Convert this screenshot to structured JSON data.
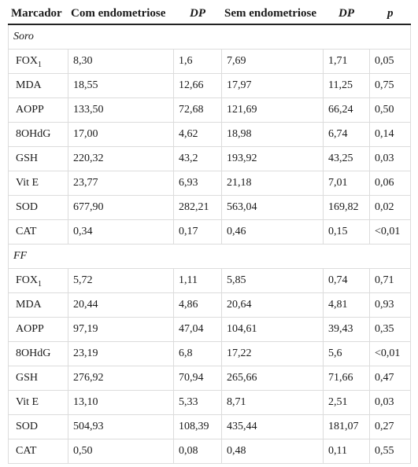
{
  "table": {
    "headers": [
      "Marcador",
      "Com endometriose",
      "DP",
      "Sem endometriose",
      "DP",
      "p"
    ],
    "sections": [
      {
        "label": "Soro",
        "rows": [
          {
            "marker": "FOX",
            "sub": "1",
            "com": "8,30",
            "dp1": "1,6",
            "sem": "7,69",
            "dp2": "1,71",
            "p": "0,05"
          },
          {
            "marker": "MDA",
            "sub": "",
            "com": "18,55",
            "dp1": "12,66",
            "sem": "17,97",
            "dp2": "11,25",
            "p": "0,75"
          },
          {
            "marker": "AOPP",
            "sub": "",
            "com": "133,50",
            "dp1": "72,68",
            "sem": "121,69",
            "dp2": "66,24",
            "p": "0,50"
          },
          {
            "marker": "8OHdG",
            "sub": "",
            "com": "17,00",
            "dp1": "4,62",
            "sem": "18,98",
            "dp2": "6,74",
            "p": "0,14"
          },
          {
            "marker": "GSH",
            "sub": "",
            "com": "220,32",
            "dp1": "43,2",
            "sem": "193,92",
            "dp2": "43,25",
            "p": "0,03"
          },
          {
            "marker": "Vit E",
            "sub": "",
            "com": "23,77",
            "dp1": "6,93",
            "sem": "21,18",
            "dp2": "7,01",
            "p": "0,06"
          },
          {
            "marker": "SOD",
            "sub": "",
            "com": "677,90",
            "dp1": "282,21",
            "sem": "563,04",
            "dp2": "169,82",
            "p": "0,02"
          },
          {
            "marker": "CAT",
            "sub": "",
            "com": "0,34",
            "dp1": "0,17",
            "sem": "0,46",
            "dp2": "0,15",
            "p": "<0,01"
          }
        ]
      },
      {
        "label": "FF",
        "rows": [
          {
            "marker": "FOX",
            "sub": "1",
            "com": "5,72",
            "dp1": "1,11",
            "sem": "5,85",
            "dp2": "0,74",
            "p": "0,71"
          },
          {
            "marker": "MDA",
            "sub": "",
            "com": "20,44",
            "dp1": "4,86",
            "sem": "20,64",
            "dp2": "4,81",
            "p": "0,93"
          },
          {
            "marker": "AOPP",
            "sub": "",
            "com": "97,19",
            "dp1": "47,04",
            "sem": "104,61",
            "dp2": "39,43",
            "p": "0,35"
          },
          {
            "marker": "8OHdG",
            "sub": "",
            "com": "23,19",
            "dp1": "6,8",
            "sem": "17,22",
            "dp2": "5,6",
            "p": "<0,01"
          },
          {
            "marker": "GSH",
            "sub": "",
            "com": "276,92",
            "dp1": "70,94",
            "sem": "265,66",
            "dp2": "71,66",
            "p": "0,47"
          },
          {
            "marker": "Vit E",
            "sub": "",
            "com": "13,10",
            "dp1": "5,33",
            "sem": "8,71",
            "dp2": "2,51",
            "p": "0,03"
          },
          {
            "marker": "SOD",
            "sub": "",
            "com": "504,93",
            "dp1": "108,39",
            "sem": "435,44",
            "dp2": "181,07",
            "p": "0,27"
          },
          {
            "marker": "CAT",
            "sub": "",
            "com": "0,50",
            "dp1": "0,08",
            "sem": "0,48",
            "dp2": "0,11",
            "p": "0,55"
          }
        ]
      }
    ]
  }
}
